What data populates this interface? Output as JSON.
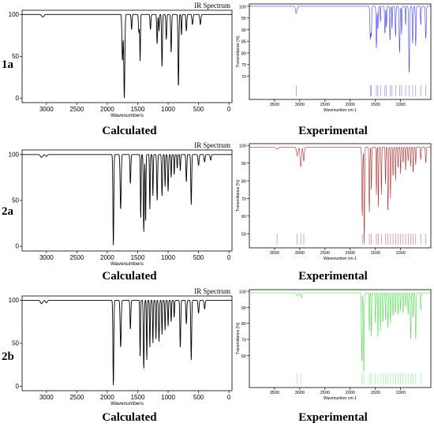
{
  "rows": [
    {
      "label": "1a"
    },
    {
      "label": "2a"
    },
    {
      "label": "2b"
    }
  ],
  "captions": {
    "calculated": "Calculated",
    "experimental": "Experimental"
  },
  "chart_data": [
    {
      "type": "line",
      "panel": "1a-calculated",
      "title": "IR Spectrum",
      "xlabel": "Wavenumbers",
      "ylabel": "",
      "xlim": [
        3400,
        -50
      ],
      "ylim": [
        -5,
        105
      ],
      "x_ticks": [
        3000,
        2500,
        2000,
        1500,
        1000,
        500,
        0
      ],
      "y_ticks": [
        0,
        50,
        100
      ],
      "color": "#000000",
      "baseline": 100,
      "peaks": [
        [
          3060,
          97,
          25
        ],
        [
          1750,
          45,
          12
        ],
        [
          1720,
          0,
          12
        ],
        [
          1600,
          82,
          10
        ],
        [
          1480,
          78,
          10
        ],
        [
          1460,
          45,
          8
        ],
        [
          1290,
          82,
          10
        ],
        [
          1180,
          65,
          10
        ],
        [
          1150,
          80,
          8
        ],
        [
          1100,
          38,
          10
        ],
        [
          1030,
          70,
          10
        ],
        [
          950,
          55,
          10
        ],
        [
          830,
          13,
          10
        ],
        [
          780,
          75,
          8
        ],
        [
          700,
          80,
          10
        ],
        [
          600,
          88,
          12
        ],
        [
          470,
          88,
          12
        ]
      ]
    },
    {
      "type": "line",
      "panel": "1a-experimental",
      "title": "",
      "xlabel": "Wavenumber cm-1",
      "ylabel": "Transmittance [%]",
      "xlim": [
        4000,
        400
      ],
      "ylim": [
        60,
        101
      ],
      "x_ticks": [
        3500,
        3000,
        2500,
        2000,
        1500,
        1000
      ],
      "y_ticks": [
        70,
        75,
        80,
        85,
        90,
        95,
        100
      ],
      "color": "#3b3bf0",
      "baseline": 100,
      "peaks": [
        [
          3070,
          97,
          20
        ],
        [
          1600,
          86,
          12
        ],
        [
          1580,
          88,
          10
        ],
        [
          1480,
          82,
          10
        ],
        [
          1450,
          90,
          10
        ],
        [
          1400,
          93,
          8
        ],
        [
          1310,
          88,
          10
        ],
        [
          1280,
          91,
          8
        ],
        [
          1210,
          85,
          10
        ],
        [
          1170,
          90,
          8
        ],
        [
          1100,
          87,
          10
        ],
        [
          1020,
          80,
          12
        ],
        [
          980,
          88,
          8
        ],
        [
          900,
          92,
          8
        ],
        [
          830,
          71,
          12
        ],
        [
          760,
          84,
          10
        ],
        [
          700,
          83,
          10
        ],
        [
          600,
          92,
          10
        ],
        [
          500,
          86,
          12
        ]
      ]
    },
    {
      "type": "line",
      "panel": "2a-calculated",
      "title": "IR Spectrum",
      "xlabel": "Wavenumbers",
      "ylabel": "",
      "xlim": [
        3400,
        -50
      ],
      "ylim": [
        -5,
        105
      ],
      "x_ticks": [
        3000,
        2500,
        2000,
        1500,
        1000,
        500,
        0
      ],
      "y_ticks": [
        0,
        50,
        100
      ],
      "color": "#000000",
      "baseline": 100,
      "peaks": [
        [
          3080,
          97,
          25
        ],
        [
          3000,
          98,
          20
        ],
        [
          1900,
          0,
          10
        ],
        [
          1780,
          40,
          12
        ],
        [
          1620,
          68,
          10
        ],
        [
          1450,
          30,
          8
        ],
        [
          1400,
          15,
          10
        ],
        [
          1370,
          25,
          8
        ],
        [
          1300,
          40,
          8
        ],
        [
          1250,
          55,
          8
        ],
        [
          1180,
          50,
          10
        ],
        [
          1100,
          55,
          10
        ],
        [
          1050,
          65,
          8
        ],
        [
          1000,
          60,
          10
        ],
        [
          950,
          75,
          8
        ],
        [
          900,
          78,
          8
        ],
        [
          850,
          85,
          8
        ],
        [
          800,
          82,
          8
        ],
        [
          700,
          70,
          10
        ],
        [
          620,
          45,
          10
        ],
        [
          500,
          88,
          12
        ],
        [
          400,
          92,
          12
        ],
        [
          300,
          94,
          12
        ]
      ]
    },
    {
      "type": "line",
      "panel": "2a-experimental",
      "title": "",
      "xlabel": "Wavenumber cm-1",
      "ylabel": "Transmittance [%]",
      "xlim": [
        4000,
        400
      ],
      "ylim": [
        42,
        101
      ],
      "x_ticks": [
        3500,
        3000,
        2500,
        2000,
        1500,
        1000
      ],
      "y_ticks": [
        50,
        60,
        70,
        80,
        90,
        100
      ],
      "color": "#b02a2a",
      "baseline": 99,
      "peaks": [
        [
          3450,
          98,
          40
        ],
        [
          3050,
          94,
          20
        ],
        [
          2980,
          88,
          18
        ],
        [
          2920,
          91,
          15
        ],
        [
          1760,
          60,
          12
        ],
        [
          1720,
          45,
          10
        ],
        [
          1620,
          62,
          10
        ],
        [
          1580,
          75,
          8
        ],
        [
          1480,
          72,
          8
        ],
        [
          1440,
          65,
          8
        ],
        [
          1380,
          72,
          8
        ],
        [
          1300,
          78,
          8
        ],
        [
          1250,
          62,
          10
        ],
        [
          1200,
          70,
          8
        ],
        [
          1150,
          82,
          8
        ],
        [
          1100,
          80,
          8
        ],
        [
          1050,
          87,
          8
        ],
        [
          1000,
          84,
          8
        ],
        [
          950,
          90,
          8
        ],
        [
          900,
          86,
          8
        ],
        [
          850,
          91,
          8
        ],
        [
          800,
          88,
          8
        ],
        [
          750,
          84,
          8
        ],
        [
          700,
          89,
          8
        ],
        [
          600,
          92,
          10
        ],
        [
          500,
          90,
          10
        ]
      ]
    },
    {
      "type": "line",
      "panel": "2b-calculated",
      "title": "IR Spectrum",
      "xlabel": "Wavenumbers",
      "ylabel": "",
      "xlim": [
        3400,
        -50
      ],
      "ylim": [
        -5,
        105
      ],
      "x_ticks": [
        3000,
        2500,
        2000,
        1500,
        1000,
        500,
        0
      ],
      "y_ticks": [
        0,
        50,
        100
      ],
      "color": "#000000",
      "baseline": 100,
      "peaks": [
        [
          3080,
          96,
          25
        ],
        [
          3000,
          97,
          20
        ],
        [
          1900,
          0,
          10
        ],
        [
          1780,
          45,
          12
        ],
        [
          1620,
          66,
          10
        ],
        [
          1460,
          35,
          8
        ],
        [
          1400,
          20,
          10
        ],
        [
          1350,
          30,
          8
        ],
        [
          1300,
          45,
          8
        ],
        [
          1250,
          50,
          8
        ],
        [
          1200,
          55,
          8
        ],
        [
          1150,
          52,
          10
        ],
        [
          1100,
          60,
          8
        ],
        [
          1050,
          65,
          8
        ],
        [
          1000,
          70,
          8
        ],
        [
          950,
          75,
          8
        ],
        [
          900,
          80,
          8
        ],
        [
          800,
          45,
          10
        ],
        [
          700,
          72,
          10
        ],
        [
          620,
          30,
          10
        ],
        [
          500,
          85,
          12
        ],
        [
          400,
          90,
          12
        ]
      ]
    },
    {
      "type": "line",
      "panel": "2b-experimental",
      "title": "",
      "xlabel": "Wavenumber cm-1",
      "ylabel": "Transmittance [%]",
      "xlim": [
        4000,
        400
      ],
      "ylim": [
        40,
        101
      ],
      "x_ticks": [
        3500,
        3000,
        2500,
        2000,
        1500,
        1000
      ],
      "y_ticks": [
        60,
        70,
        80,
        90,
        100
      ],
      "color": "#4ee04e",
      "baseline": 99,
      "peaks": [
        [
          3050,
          97,
          18
        ],
        [
          2970,
          96,
          15
        ],
        [
          1770,
          55,
          10
        ],
        [
          1730,
          48,
          10
        ],
        [
          1620,
          75,
          8
        ],
        [
          1580,
          72,
          8
        ],
        [
          1500,
          80,
          8
        ],
        [
          1450,
          70,
          8
        ],
        [
          1400,
          75,
          8
        ],
        [
          1350,
          80,
          8
        ],
        [
          1300,
          82,
          8
        ],
        [
          1250,
          76,
          8
        ],
        [
          1200,
          80,
          8
        ],
        [
          1150,
          84,
          8
        ],
        [
          1100,
          86,
          8
        ],
        [
          1050,
          85,
          8
        ],
        [
          1000,
          88,
          8
        ],
        [
          950,
          86,
          8
        ],
        [
          900,
          90,
          8
        ],
        [
          850,
          85,
          8
        ],
        [
          800,
          70,
          10
        ],
        [
          750,
          83,
          8
        ],
        [
          700,
          70,
          10
        ],
        [
          600,
          88,
          10
        ]
      ]
    }
  ]
}
